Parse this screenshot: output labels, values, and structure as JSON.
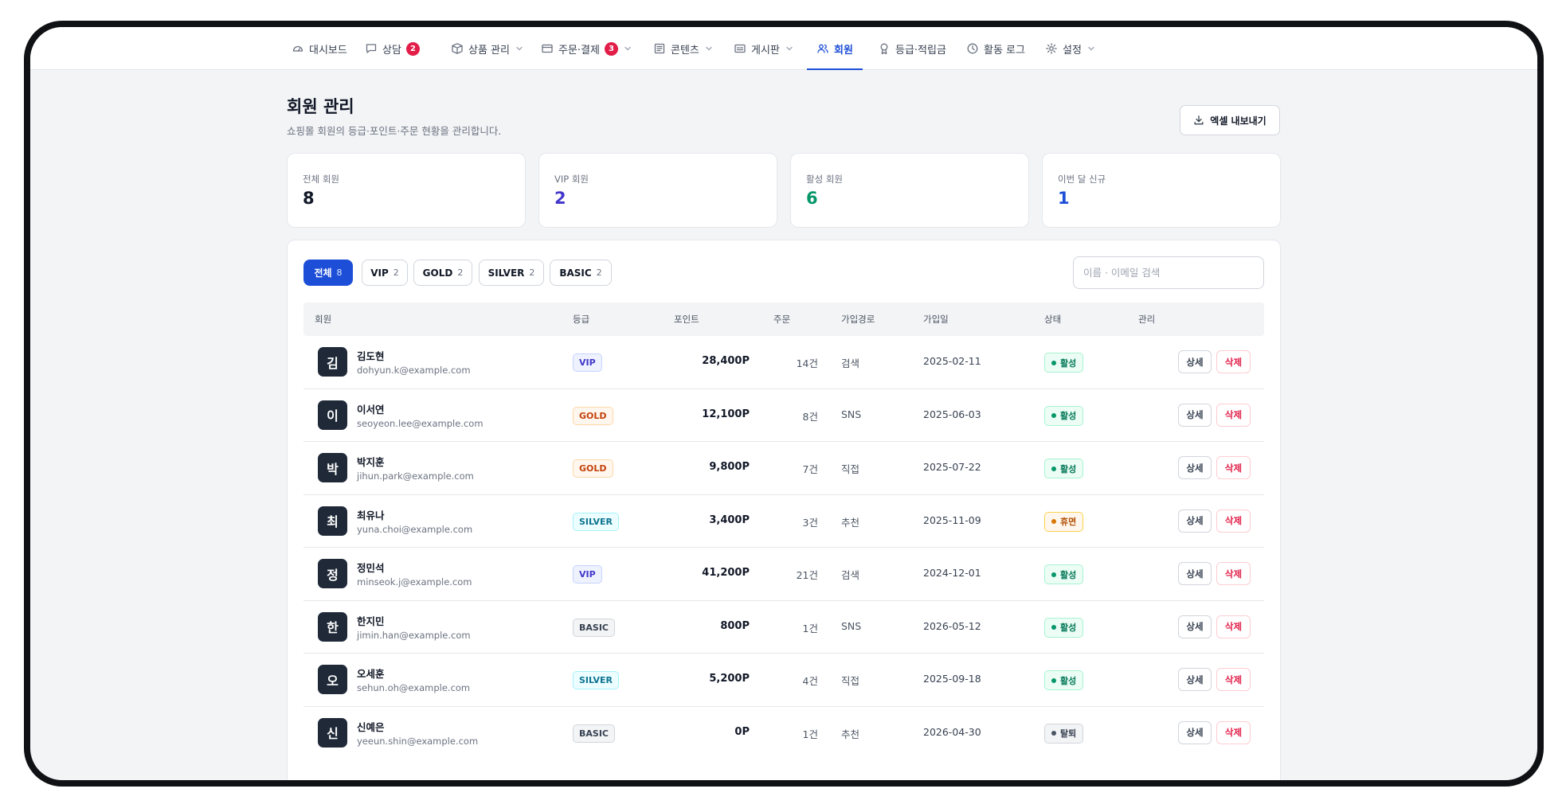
{
  "nav": [
    {
      "label": "대시보드",
      "icon": "dashboard-icon",
      "badge": "",
      "dropdown": false,
      "active": false
    },
    {
      "label": "상담",
      "icon": "chat-icon",
      "badge": "2",
      "dropdown": false,
      "active": false
    },
    {
      "label": "상품 관리",
      "icon": "box-icon",
      "badge": "",
      "dropdown": true,
      "active": false
    },
    {
      "label": "주문·결제",
      "icon": "card-icon",
      "badge": "3",
      "dropdown": true,
      "active": false
    },
    {
      "label": "콘텐츠",
      "icon": "content-icon",
      "badge": "",
      "dropdown": true,
      "active": false
    },
    {
      "label": "게시판",
      "icon": "board-icon",
      "badge": "",
      "dropdown": true,
      "active": false
    },
    {
      "label": "회원",
      "icon": "users-icon",
      "badge": "",
      "dropdown": false,
      "active": true
    },
    {
      "label": "등급·적립금",
      "icon": "award-icon",
      "badge": "",
      "dropdown": false,
      "active": false
    },
    {
      "label": "활동 로그",
      "icon": "clock-icon",
      "badge": "",
      "dropdown": false,
      "active": false
    },
    {
      "label": "설정",
      "icon": "gear-icon",
      "badge": "",
      "dropdown": true,
      "active": false
    }
  ],
  "page": {
    "title": "회원 관리",
    "subtitle": "쇼핑몰 회원의 등급·포인트·주문 현황을 관리합니다.",
    "export_label": "엑셀 내보내기"
  },
  "stats": [
    {
      "label": "전체 회원",
      "value": "8",
      "color": "#111827"
    },
    {
      "label": "VIP 회원",
      "value": "2",
      "color": "#4338ca"
    },
    {
      "label": "활성 회원",
      "value": "6",
      "color": "#059669"
    },
    {
      "label": "이번 달 신규",
      "value": "1",
      "color": "#1d4ed8"
    }
  ],
  "filters": [
    {
      "label": "전체",
      "count": "8",
      "active": true
    },
    {
      "label": "VIP",
      "count": "2",
      "active": false
    },
    {
      "label": "GOLD",
      "count": "2",
      "active": false
    },
    {
      "label": "SILVER",
      "count": "2",
      "active": false
    },
    {
      "label": "BASIC",
      "count": "2",
      "active": false
    }
  ],
  "search": {
    "placeholder": "이름 · 이메일 검색",
    "value": ""
  },
  "table": {
    "headers": {
      "member": "회원",
      "grade": "등급",
      "points": "포인트",
      "orders": "주문",
      "route": "가입경로",
      "joined": "가입일",
      "status": "상태",
      "manage": "관리"
    },
    "detail_label": "상세",
    "delete_label": "삭제",
    "rows": [
      {
        "initial": "김",
        "name": "김도현",
        "email": "dohyun.k@example.com",
        "grade": "VIP",
        "points": "28,400P",
        "orders": "14건",
        "route": "검색",
        "joined": "2025-02-11",
        "status": "활성",
        "status_kind": "green"
      },
      {
        "initial": "이",
        "name": "이서연",
        "email": "seoyeon.lee@example.com",
        "grade": "GOLD",
        "points": "12,100P",
        "orders": "8건",
        "route": "SNS",
        "joined": "2025-06-03",
        "status": "활성",
        "status_kind": "green"
      },
      {
        "initial": "박",
        "name": "박지훈",
        "email": "jihun.park@example.com",
        "grade": "GOLD",
        "points": "9,800P",
        "orders": "7건",
        "route": "직접",
        "joined": "2025-07-22",
        "status": "활성",
        "status_kind": "green"
      },
      {
        "initial": "최",
        "name": "최유나",
        "email": "yuna.choi@example.com",
        "grade": "SILVER",
        "points": "3,400P",
        "orders": "3건",
        "route": "추천",
        "joined": "2025-11-09",
        "status": "휴면",
        "status_kind": "amber"
      },
      {
        "initial": "정",
        "name": "정민석",
        "email": "minseok.j@example.com",
        "grade": "VIP",
        "points": "41,200P",
        "orders": "21건",
        "route": "검색",
        "joined": "2024-12-01",
        "status": "활성",
        "status_kind": "green"
      },
      {
        "initial": "한",
        "name": "한지민",
        "email": "jimin.han@example.com",
        "grade": "BASIC",
        "points": "800P",
        "orders": "1건",
        "route": "SNS",
        "joined": "2026-05-12",
        "status": "활성",
        "status_kind": "green"
      },
      {
        "initial": "오",
        "name": "오세훈",
        "email": "sehun.oh@example.com",
        "grade": "SILVER",
        "points": "5,200P",
        "orders": "4건",
        "route": "직접",
        "joined": "2025-09-18",
        "status": "활성",
        "status_kind": "green"
      },
      {
        "initial": "신",
        "name": "신예은",
        "email": "yeeun.shin@example.com",
        "grade": "BASIC",
        "points": "0P",
        "orders": "1건",
        "route": "추천",
        "joined": "2026-04-30",
        "status": "탈퇴",
        "status_kind": "gray"
      }
    ]
  }
}
